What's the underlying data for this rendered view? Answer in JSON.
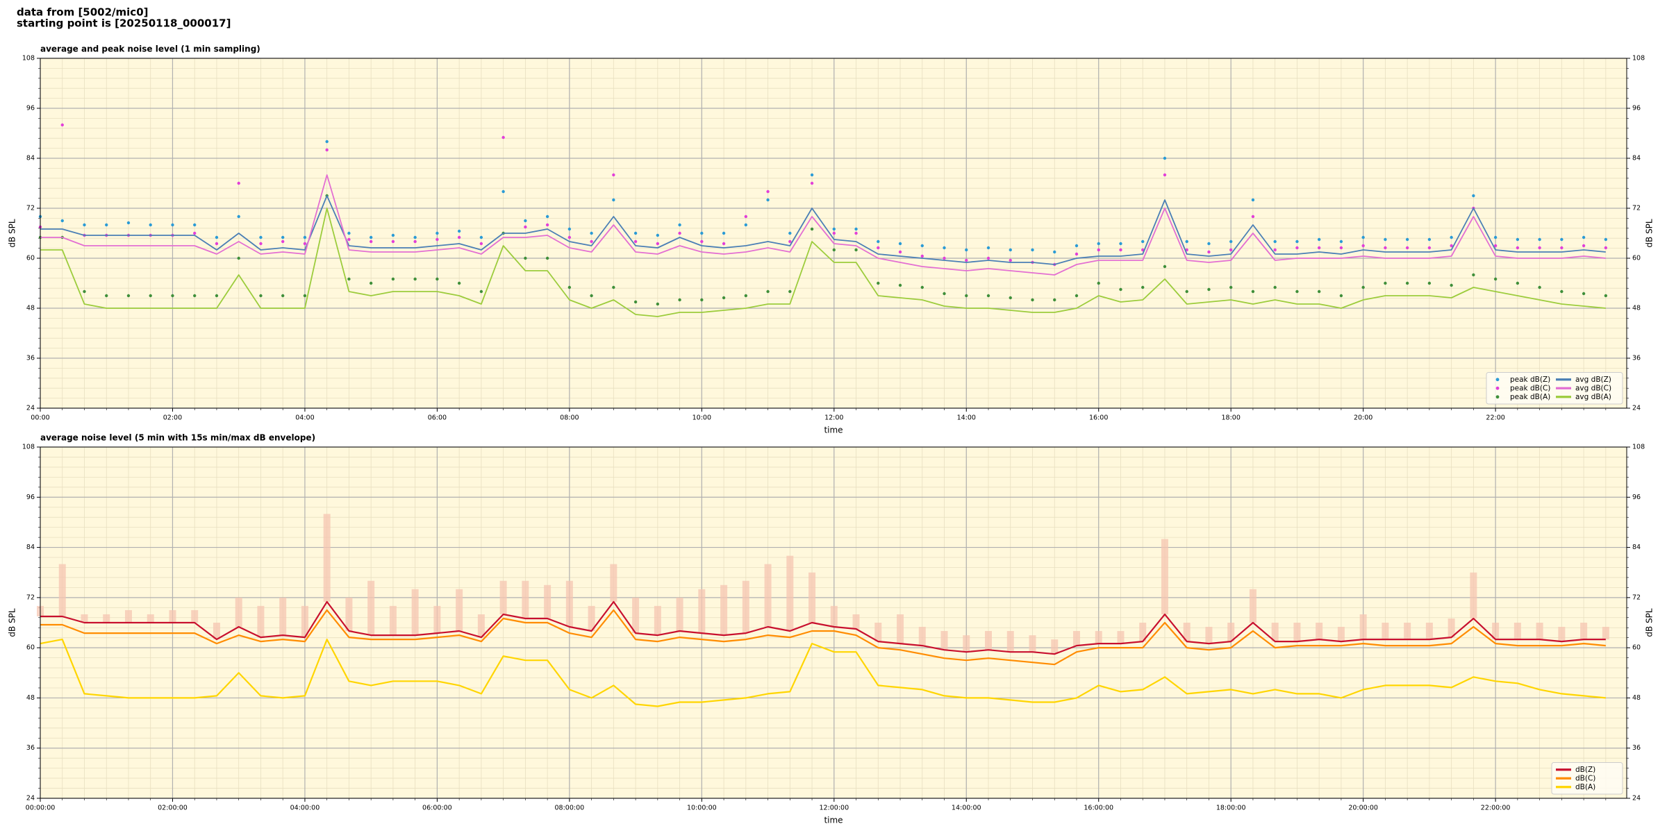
{
  "header": {
    "source": "data from [5002/mic0]",
    "start": "starting point is [20250118_000017]"
  },
  "chart_data": [
    {
      "type": "line",
      "title": "average and peak noise level (1 min sampling)",
      "x_label": "time",
      "y_label": "dB SPL",
      "background": "#fff8dc",
      "grid": true,
      "minor_grid": true,
      "legend": "lower right",
      "xlim": [
        0,
        1439
      ],
      "ylim": [
        24,
        108
      ],
      "xticks": [
        {
          "value": 0,
          "label": "00:00"
        },
        {
          "value": 120,
          "label": "02:00"
        },
        {
          "value": 240,
          "label": "04:00"
        },
        {
          "value": 360,
          "label": "06:00"
        },
        {
          "value": 480,
          "label": "08:00"
        },
        {
          "value": 600,
          "label": "10:00"
        },
        {
          "value": 720,
          "label": "12:00"
        },
        {
          "value": 840,
          "label": "14:00"
        },
        {
          "value": 960,
          "label": "16:00"
        },
        {
          "value": 1080,
          "label": "18:00"
        },
        {
          "value": 1200,
          "label": "20:00"
        },
        {
          "value": 1320,
          "label": "22:00"
        }
      ],
      "yticks": [
        24,
        36,
        48,
        60,
        72,
        84,
        96,
        108
      ],
      "x": [
        0,
        20,
        40,
        60,
        80,
        100,
        120,
        140,
        160,
        180,
        200,
        220,
        240,
        260,
        280,
        300,
        320,
        340,
        360,
        380,
        400,
        420,
        440,
        460,
        480,
        500,
        520,
        540,
        560,
        580,
        600,
        620,
        640,
        660,
        680,
        700,
        720,
        740,
        760,
        780,
        800,
        820,
        840,
        860,
        880,
        900,
        920,
        940,
        960,
        980,
        1000,
        1020,
        1040,
        1060,
        1080,
        1100,
        1120,
        1140,
        1160,
        1180,
        1200,
        1220,
        1240,
        1260,
        1280,
        1300,
        1320,
        1340,
        1360,
        1380,
        1400,
        1420
      ],
      "series": [
        {
          "name": "peak dB(Z)",
          "mark": "scatter",
          "color": "#2a9bd6",
          "values": [
            70,
            69,
            68,
            68,
            68.5,
            68,
            68,
            68,
            65,
            70,
            65,
            65,
            65,
            88,
            66,
            65,
            65.5,
            65,
            66,
            66.5,
            65,
            76,
            69,
            70,
            67,
            66,
            74,
            66,
            65.5,
            68,
            66,
            66,
            68,
            74,
            66,
            80,
            67,
            67,
            64,
            63.5,
            63,
            62.5,
            62,
            62.5,
            62,
            62,
            61.5,
            63,
            63.5,
            63.5,
            64,
            84,
            64,
            63.5,
            64,
            74,
            64,
            64,
            64.5,
            64,
            65,
            64.5,
            64.5,
            64.5,
            65,
            75,
            65,
            64.5,
            64.5,
            64.5,
            65,
            64.5
          ]
        },
        {
          "name": "peak dB(C)",
          "mark": "scatter",
          "color": "#e23fd8",
          "values": [
            67.5,
            92,
            65.5,
            65.5,
            65.5,
            65.5,
            65.5,
            66,
            63.5,
            78,
            63.5,
            64,
            63.5,
            86,
            64.5,
            64,
            64,
            64,
            64.5,
            65,
            63.5,
            89,
            67.5,
            68,
            65,
            64,
            80,
            64,
            63.5,
            66,
            64,
            63.5,
            70,
            76,
            64,
            78,
            66,
            66,
            62.5,
            61.5,
            60.5,
            60,
            59.5,
            60,
            59.5,
            59,
            58.5,
            61,
            62,
            62,
            62,
            80,
            62,
            61.5,
            62,
            70,
            62,
            62.5,
            62.5,
            62.5,
            63,
            62.5,
            62.5,
            62.5,
            63,
            72,
            63,
            62.5,
            62.5,
            62.5,
            63,
            62.5
          ]
        },
        {
          "name": "peak dB(A)",
          "mark": "scatter",
          "color": "#3f8f3a",
          "values": [
            65,
            65,
            52,
            51,
            51,
            51,
            51,
            51,
            51,
            60,
            51,
            51,
            51,
            75,
            55,
            54,
            55,
            55,
            55,
            54,
            52,
            66,
            60,
            60,
            53,
            51,
            53,
            49.5,
            49,
            50,
            50,
            50.5,
            51,
            52,
            52,
            67,
            62,
            62,
            54,
            53.5,
            53,
            51.5,
            51,
            51,
            50.5,
            50,
            50,
            51,
            54,
            52.5,
            53,
            58,
            52,
            52.5,
            53,
            52,
            53,
            52,
            52,
            51,
            53,
            54,
            54,
            54,
            53.5,
            56,
            55,
            54,
            53,
            52,
            51.5,
            51
          ]
        },
        {
          "name": "avg dB(Z)",
          "mark": "line",
          "color": "#4a7fb5",
          "values": [
            67,
            67,
            65.5,
            65.5,
            65.5,
            65.5,
            65.5,
            65.5,
            62,
            66,
            62,
            62.5,
            62,
            75,
            63,
            62.5,
            62.5,
            62.5,
            63,
            63.5,
            62,
            66,
            66,
            67,
            64,
            63,
            70,
            63,
            62.5,
            65,
            63,
            62.5,
            63,
            64,
            63,
            72,
            64.5,
            64,
            61,
            60.5,
            60,
            59.5,
            59,
            59.5,
            59,
            59,
            58.5,
            60,
            60.5,
            60.5,
            61,
            74,
            61,
            60.5,
            61,
            68,
            61,
            61,
            61.5,
            61,
            62,
            61.5,
            61.5,
            61.5,
            62,
            72,
            62,
            61.5,
            61.5,
            61.5,
            62,
            61.5
          ]
        },
        {
          "name": "avg dB(C)",
          "mark": "line",
          "color": "#e36fd2",
          "values": [
            65,
            65,
            63,
            63,
            63,
            63,
            63,
            63,
            61,
            64,
            61,
            61.5,
            61,
            80,
            62,
            61.5,
            61.5,
            61.5,
            62,
            62.5,
            61,
            65,
            65,
            65.5,
            62.5,
            61.5,
            68,
            61.5,
            61,
            63,
            61.5,
            61,
            61.5,
            62.5,
            61.5,
            70,
            63.5,
            63,
            60,
            59,
            58,
            57.5,
            57,
            57.5,
            57,
            56.5,
            56,
            58.5,
            59.5,
            59.5,
            59.5,
            72,
            59.5,
            59,
            59.5,
            66,
            59.5,
            60,
            60,
            60,
            60.5,
            60,
            60,
            60,
            60.5,
            70,
            60.5,
            60,
            60,
            60,
            60.5,
            60
          ]
        },
        {
          "name": "avg dB(A)",
          "mark": "line",
          "color": "#9ccc3c",
          "values": [
            62,
            62,
            49,
            48,
            48,
            48,
            48,
            48,
            48,
            56,
            48,
            48,
            48,
            72,
            52,
            51,
            52,
            52,
            52,
            51,
            49,
            63,
            57,
            57,
            50,
            48,
            50,
            46.5,
            46,
            47,
            47,
            47.5,
            48,
            49,
            49,
            64,
            59,
            59,
            51,
            50.5,
            50,
            48.5,
            48,
            48,
            47.5,
            47,
            47,
            48,
            51,
            49.5,
            50,
            55,
            49,
            49.5,
            50,
            49,
            50,
            49,
            49,
            48,
            50,
            51,
            51,
            51,
            50.5,
            53,
            52,
            51,
            50,
            49,
            48.5,
            48
          ]
        }
      ]
    },
    {
      "type": "line",
      "title": "average noise level (5 min with 15s min/max dB envelope)",
      "x_label": "time",
      "y_label": "dB SPL",
      "background": "#fff8dc",
      "grid": true,
      "minor_grid": true,
      "legend": "lower right",
      "xlim": [
        0,
        1439
      ],
      "ylim": [
        24,
        108
      ],
      "xticks": [
        {
          "value": 0,
          "label": "00:00:00"
        },
        {
          "value": 120,
          "label": "02:00:00"
        },
        {
          "value": 240,
          "label": "04:00:00"
        },
        {
          "value": 360,
          "label": "06:00:00"
        },
        {
          "value": 480,
          "label": "08:00:00"
        },
        {
          "value": 600,
          "label": "10:00:00"
        },
        {
          "value": 720,
          "label": "12:00:00"
        },
        {
          "value": 840,
          "label": "14:00:00"
        },
        {
          "value": 960,
          "label": "16:00:00"
        },
        {
          "value": 1080,
          "label": "18:00:00"
        },
        {
          "value": 1200,
          "label": "20:00:00"
        },
        {
          "value": 1320,
          "label": "22:00:00"
        }
      ],
      "yticks": [
        24,
        36,
        48,
        60,
        72,
        84,
        96,
        108
      ],
      "x": [
        0,
        20,
        40,
        60,
        80,
        100,
        120,
        140,
        160,
        180,
        200,
        220,
        240,
        260,
        280,
        300,
        320,
        340,
        360,
        380,
        400,
        420,
        440,
        460,
        480,
        500,
        520,
        540,
        560,
        580,
        600,
        620,
        640,
        660,
        680,
        700,
        720,
        740,
        760,
        780,
        800,
        820,
        840,
        860,
        880,
        900,
        920,
        940,
        960,
        980,
        1000,
        1020,
        1040,
        1060,
        1080,
        1100,
        1120,
        1140,
        1160,
        1180,
        1200,
        1220,
        1240,
        1260,
        1280,
        1300,
        1320,
        1340,
        1360,
        1380,
        1400,
        1420
      ],
      "envelope": {
        "color": "#f6c5b2",
        "values": [
          70,
          80,
          68,
          68,
          69,
          68,
          69,
          69,
          66,
          72,
          70,
          72,
          70,
          92,
          72,
          76,
          70,
          74,
          70,
          74,
          68,
          76,
          76,
          75,
          76,
          70,
          80,
          72,
          70,
          72,
          74,
          75,
          76,
          80,
          82,
          78,
          70,
          68,
          66,
          68,
          65,
          64,
          63,
          64,
          64,
          63,
          62,
          64,
          64,
          64,
          66,
          86,
          66,
          65,
          66,
          74,
          66,
          66,
          66,
          65,
          68,
          66,
          66,
          66,
          67,
          78,
          66,
          66,
          66,
          65,
          66,
          65
        ]
      },
      "series": [
        {
          "name": "dB(Z)",
          "mark": "line",
          "color": "#c8102e",
          "values": [
            67.5,
            67.5,
            66,
            66,
            66,
            66,
            66,
            66,
            62,
            65,
            62.5,
            63,
            62.5,
            71,
            64,
            63,
            63,
            63,
            63.5,
            64,
            62.5,
            68,
            67,
            67,
            65,
            64,
            71,
            63.5,
            63,
            64,
            63.5,
            63,
            63.5,
            65,
            64,
            66,
            65,
            64.5,
            61.5,
            61,
            60.5,
            59.5,
            59,
            59.5,
            59,
            59,
            58.5,
            60.5,
            61,
            61,
            61.5,
            68,
            61.5,
            61,
            61.5,
            66,
            61.5,
            61.5,
            62,
            61.5,
            62,
            62,
            62,
            62,
            62.5,
            67,
            62,
            62,
            62,
            61.5,
            62,
            62
          ]
        },
        {
          "name": "dB(C)",
          "mark": "line",
          "color": "#ff8c00",
          "values": [
            65.5,
            65.5,
            63.5,
            63.5,
            63.5,
            63.5,
            63.5,
            63.5,
            61,
            63,
            61.5,
            62,
            61.5,
            69,
            62.5,
            62,
            62,
            62,
            62.5,
            63,
            61.5,
            67,
            66,
            66,
            63.5,
            62.5,
            69,
            62,
            61.5,
            62.5,
            62,
            61.5,
            62,
            63,
            62.5,
            64,
            64,
            63,
            60,
            59.5,
            58.5,
            57.5,
            57,
            57.5,
            57,
            56.5,
            56,
            59,
            60,
            60,
            60,
            66,
            60,
            59.5,
            60,
            64,
            60,
            60.5,
            60.5,
            60.5,
            61,
            60.5,
            60.5,
            60.5,
            61,
            65,
            61,
            60.5,
            60.5,
            60.5,
            61,
            60.5
          ]
        },
        {
          "name": "dB(A)",
          "mark": "line",
          "color": "#ffd500",
          "values": [
            61,
            62,
            49,
            48.5,
            48,
            48,
            48,
            48,
            48.5,
            54,
            48.5,
            48,
            48.5,
            62,
            52,
            51,
            52,
            52,
            52,
            51,
            49,
            58,
            57,
            57,
            50,
            48,
            51,
            46.5,
            46,
            47,
            47,
            47.5,
            48,
            49,
            49.5,
            61,
            59,
            59,
            51,
            50.5,
            50,
            48.5,
            48,
            48,
            47.5,
            47,
            47,
            48,
            51,
            49.5,
            50,
            53,
            49,
            49.5,
            50,
            49,
            50,
            49,
            49,
            48,
            50,
            51,
            51,
            51,
            50.5,
            53,
            52,
            51.5,
            50,
            49,
            48.5,
            48
          ]
        }
      ]
    }
  ]
}
